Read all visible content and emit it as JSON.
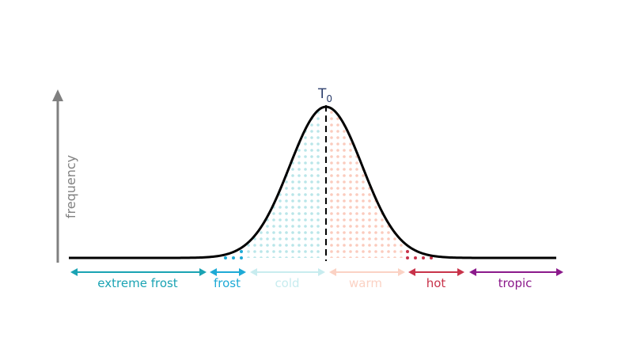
{
  "diagram": {
    "y_axis_label": "frequency",
    "peak_label_main": "T",
    "peak_label_sub": "0",
    "regions": [
      {
        "label": "extreme frost",
        "color": "#1aa3b3"
      },
      {
        "label": "frost",
        "color": "#1eaad6"
      },
      {
        "label": "cold",
        "color": "#c8ecef"
      },
      {
        "label": "warm",
        "color": "#fbd2c4"
      },
      {
        "label": "hot",
        "color": "#c8334a"
      },
      {
        "label": "tropic",
        "color": "#8b1a8b"
      }
    ],
    "colors": {
      "axis": "#808080",
      "curve": "#000000",
      "peak_label": "#2b3d6b",
      "cold_dots": "#b9e6e9",
      "warm_dots": "#fbcbbd"
    }
  }
}
